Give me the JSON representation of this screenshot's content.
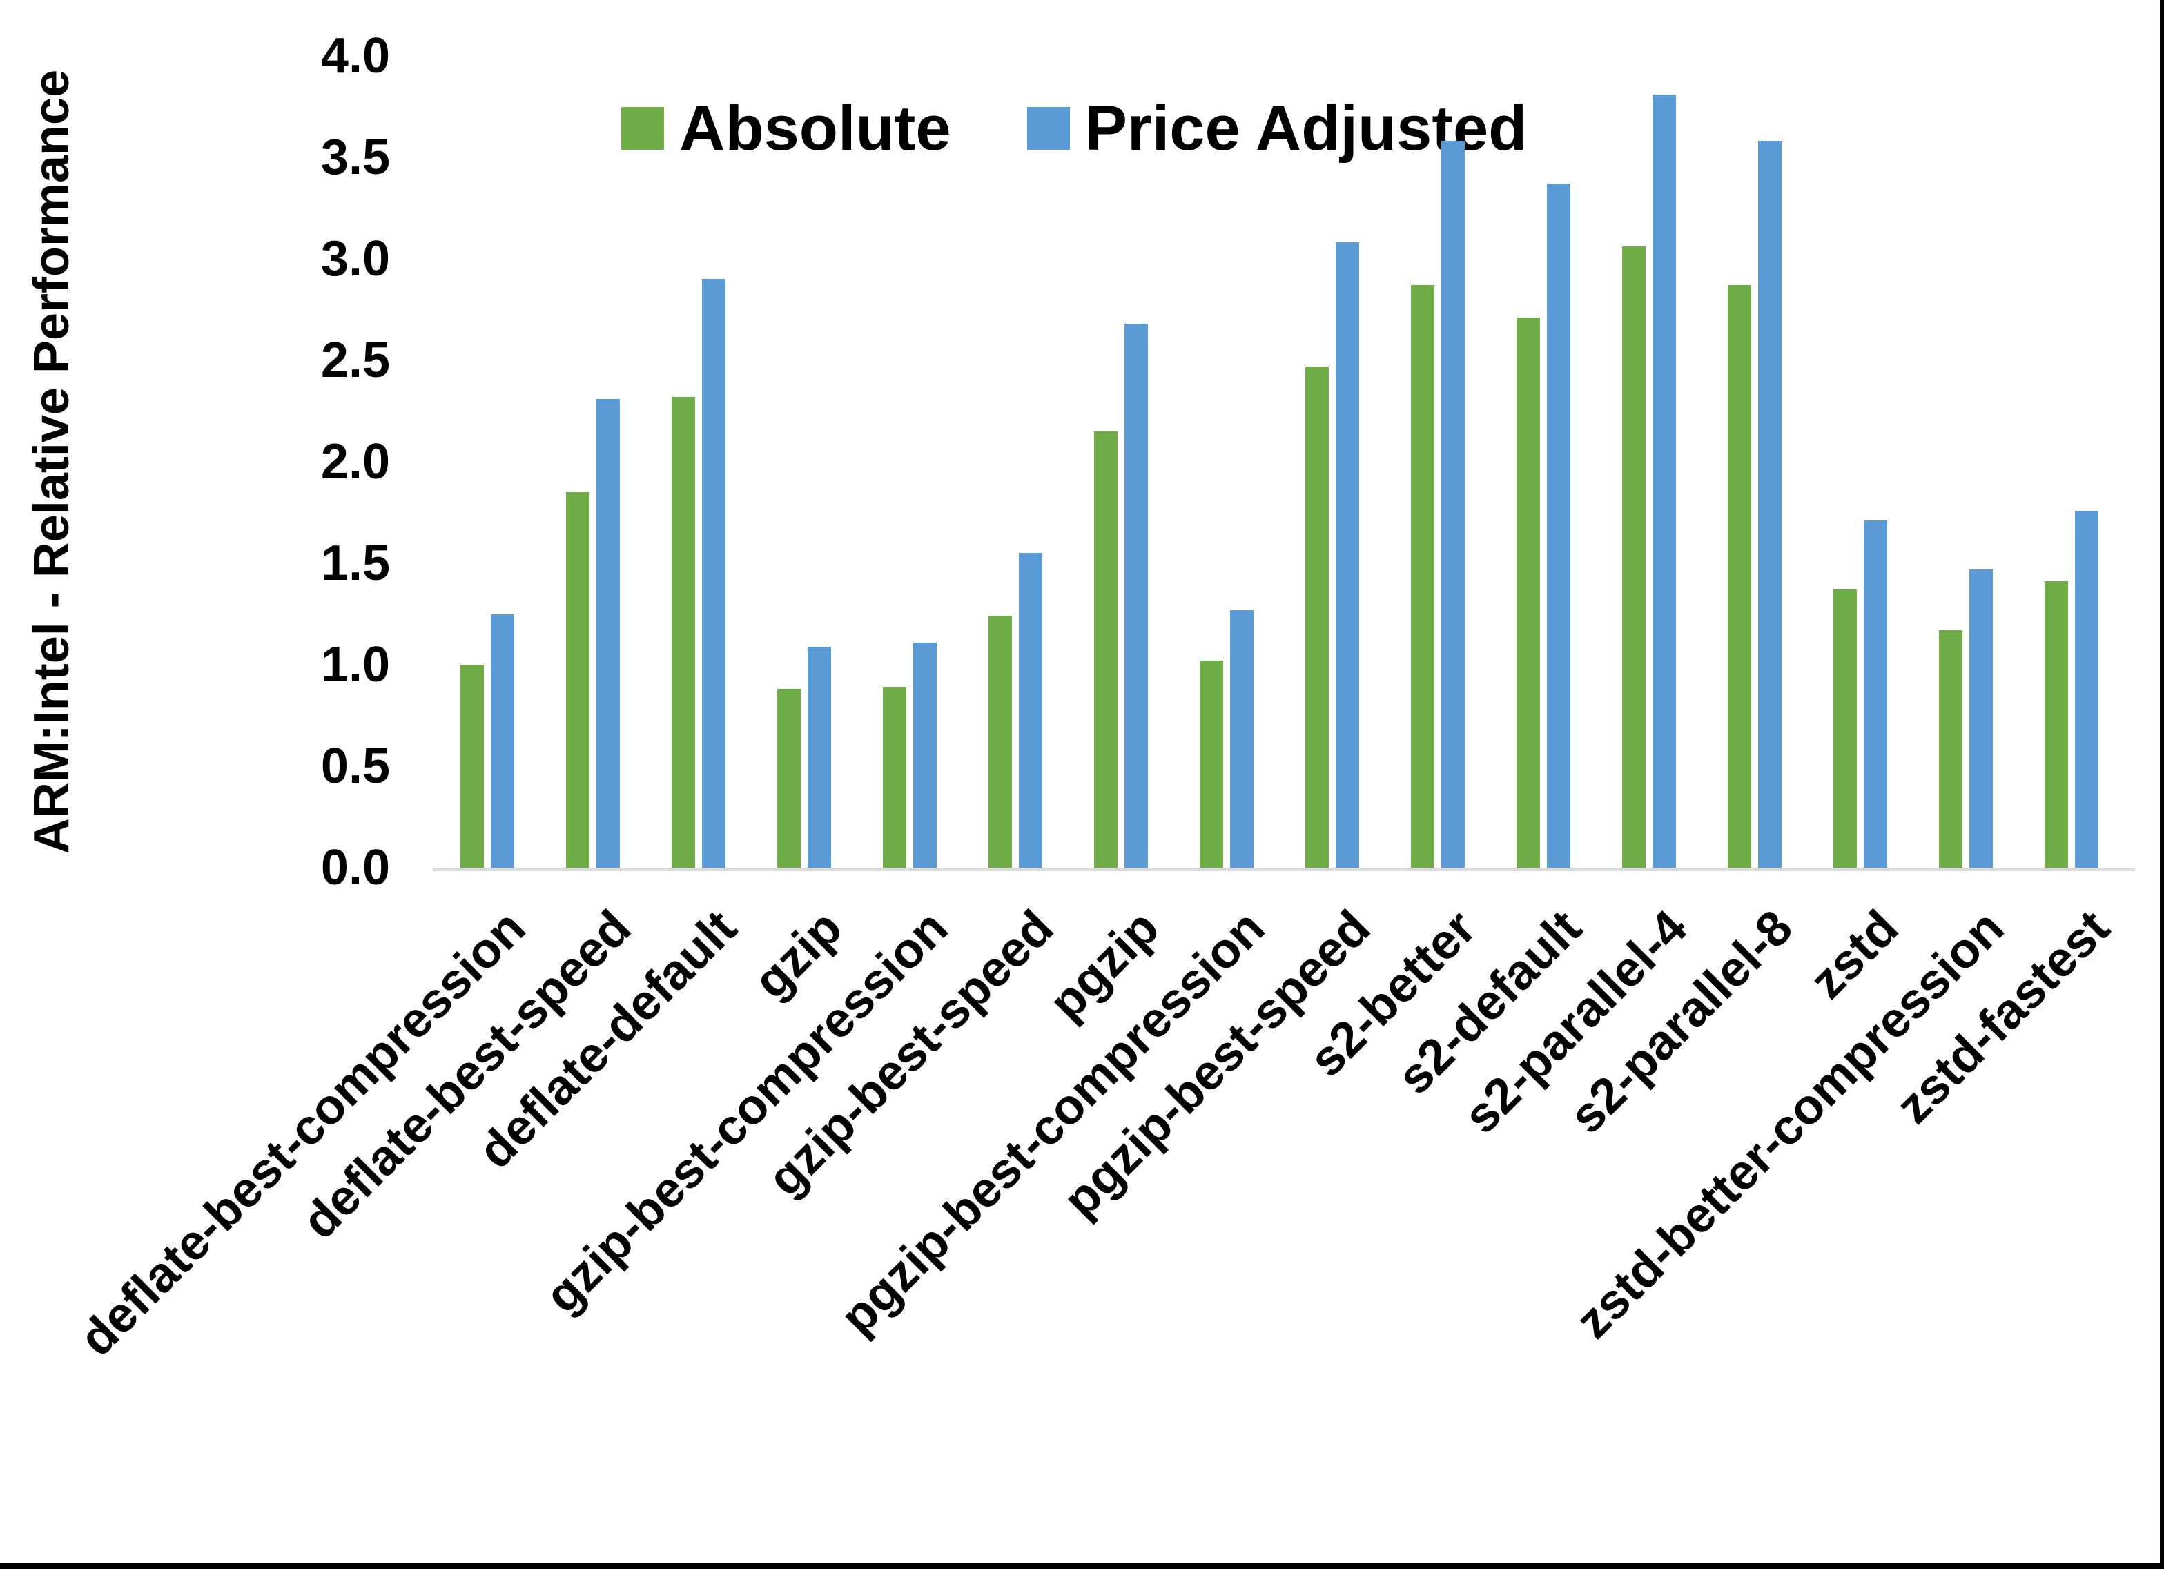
{
  "y_axis_title": "ARM:Intel - Relative Performance",
  "chart_data": {
    "type": "bar",
    "title": "",
    "xlabel": "",
    "ylabel": "ARM:Intel - Relative Performance",
    "ylim": [
      0.0,
      4.0
    ],
    "ytick_step": 0.5,
    "ytick_labels": [
      "0.0",
      "0.5",
      "1.0",
      "1.5",
      "2.0",
      "2.5",
      "3.0",
      "3.5",
      "4.0"
    ],
    "grid": false,
    "legend_position": "top-center",
    "axis_line_color": "#D9D9D9",
    "categories": [
      "deflate-best-compression",
      "deflate-best-speed",
      "deflate-default",
      "gzip",
      "gzip-best-compression",
      "gzip-best-speed",
      "pgzip",
      "pgzip-best-compression",
      "pgzip-best-speed",
      "s2-better",
      "s2-default",
      "s2-parallel-4",
      "s2-parallel-8",
      "zstd",
      "zstd-better-compression",
      "zstd-fastest"
    ],
    "series": [
      {
        "name": "Absolute",
        "color": "#70AD47",
        "values": [
          1.0,
          1.85,
          2.32,
          0.88,
          0.89,
          1.24,
          2.15,
          1.02,
          2.47,
          2.87,
          2.71,
          3.06,
          2.87,
          1.37,
          1.17,
          1.41
        ]
      },
      {
        "name": "Price Adjusted",
        "color": "#5B9BD5",
        "values": [
          1.25,
          2.31,
          2.9,
          1.09,
          1.11,
          1.55,
          2.68,
          1.27,
          3.08,
          3.58,
          3.37,
          3.81,
          3.58,
          1.71,
          1.47,
          1.76
        ]
      }
    ]
  }
}
